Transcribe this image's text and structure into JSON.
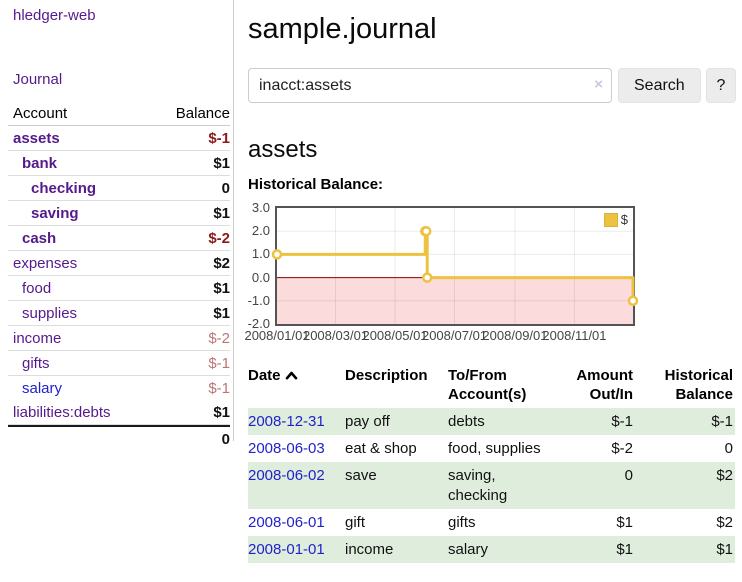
{
  "colors": {
    "link_purple": "#551a8b",
    "link_blue": "#2222cc",
    "negative_red": "#8b1a1a",
    "negative_light_red": "#bb7575",
    "stripe_green": "#dfeddd",
    "chart_gold": "#edc240"
  },
  "app": {
    "brand": "hledger-web"
  },
  "sidebar": {
    "journal_link": "Journal",
    "accounts": {
      "header": {
        "account": "Account",
        "balance": "Balance"
      },
      "rows": [
        {
          "name": "assets",
          "balance": "$-1",
          "level": 1,
          "bold": true,
          "bal_class": "neg-bold"
        },
        {
          "name": "bank",
          "balance": "$1",
          "level": 2,
          "bold": true,
          "bal_class": "pos-bold"
        },
        {
          "name": "checking",
          "balance": "0",
          "level": 3,
          "bold": true,
          "bal_class": "pos-bold"
        },
        {
          "name": "saving",
          "balance": "$1",
          "level": 3,
          "bold": true,
          "bal_class": "pos-bold"
        },
        {
          "name": "cash",
          "balance": "$-2",
          "level": 2,
          "bold": true,
          "bal_class": "neg-bold"
        },
        {
          "name": "expenses",
          "balance": "$2",
          "level": 1,
          "bold": false,
          "bal_class": "pos-bold"
        },
        {
          "name": "food",
          "balance": "$1",
          "level": 2,
          "bold": false,
          "bal_class": "pos-bold"
        },
        {
          "name": "supplies",
          "balance": "$1",
          "level": 2,
          "bold": false,
          "bal_class": "pos-bold"
        },
        {
          "name": "income",
          "balance": "$-2",
          "level": 1,
          "bold": false,
          "bal_class": "neg-light"
        },
        {
          "name": "gifts",
          "balance": "$-1",
          "level": 2,
          "bold": false,
          "bal_class": "neg-light"
        },
        {
          "name": "salary",
          "balance": "$-1",
          "level": 2,
          "bold": false,
          "bal_class": "neg-light",
          "link_class": "blue"
        },
        {
          "name": "liabilities:debts",
          "balance": "$1",
          "level": 1,
          "bold": false,
          "bal_class": "pos-bold"
        }
      ],
      "total": "0"
    }
  },
  "main": {
    "title": "sample.journal",
    "search": {
      "value": "inacct:assets",
      "clear": "×",
      "search_button": "Search",
      "help_button": "?"
    },
    "heading": "assets",
    "chart_title": "Historical Balance:"
  },
  "chart_data": {
    "type": "line",
    "style": "steps",
    "title": "Historical Balance:",
    "legend_label": "$",
    "legend_position": "top-right",
    "line_color": "#edc240",
    "points": [
      [
        "2008-01-01",
        1
      ],
      [
        "2008-06-01",
        2
      ],
      [
        "2008-06-02",
        2
      ],
      [
        "2008-06-03",
        0
      ],
      [
        "2008-12-31",
        -1
      ]
    ],
    "ylim": [
      -2,
      3
    ],
    "yticks": [
      3.0,
      2.0,
      1.0,
      0.0,
      -1.0,
      -2.0
    ],
    "xlim": [
      "2008-01-01",
      "2008-12-31"
    ],
    "xticks": [
      "2008/01/01",
      "2008/03/01",
      "2008/05/01",
      "2008/07/01",
      "2008/09/01",
      "2008/11/01"
    ],
    "negative_region_color": "#fbdbdb",
    "zero_line_color": "#8b0000",
    "grid": true
  },
  "register": {
    "headers": {
      "date": "Date",
      "description": "Description",
      "accounts": "To/From Account(s)",
      "amount": "Amount Out/In",
      "balance": "Historical Balance"
    },
    "rows": [
      {
        "date": "2008-12-31",
        "description": "pay off",
        "accounts": "debts",
        "amount": "$-1",
        "balance": "$-1",
        "amount_neg": true,
        "balance_neg": true
      },
      {
        "date": "2008-06-03",
        "description": "eat & shop",
        "accounts": "food, supplies",
        "amount": "$-2",
        "balance": "0",
        "amount_neg": true,
        "balance_neg": false
      },
      {
        "date": "2008-06-02",
        "description": "save",
        "accounts": "saving, checking",
        "amount": "0",
        "balance": "$2",
        "amount_neg": false,
        "balance_neg": false
      },
      {
        "date": "2008-06-01",
        "description": "gift",
        "accounts": "gifts",
        "amount": "$1",
        "balance": "$2",
        "amount_neg": false,
        "balance_neg": false
      },
      {
        "date": "2008-01-01",
        "description": "income",
        "accounts": "salary",
        "amount": "$1",
        "balance": "$1",
        "amount_neg": false,
        "balance_neg": false
      }
    ]
  }
}
